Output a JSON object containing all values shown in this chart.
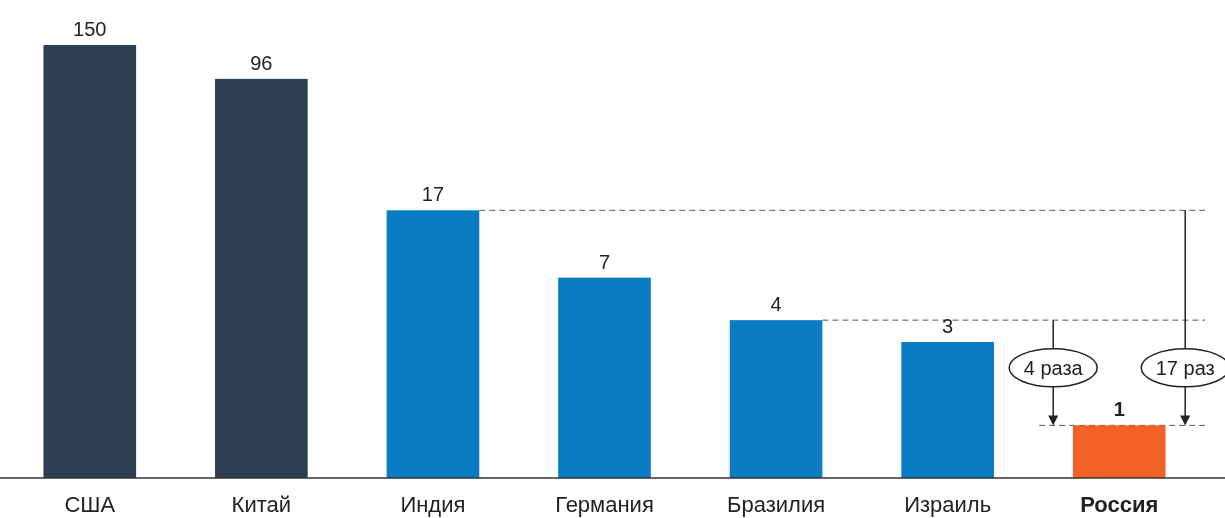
{
  "chart_data": {
    "type": "bar",
    "categories": [
      "США",
      "Китай",
      "Индия",
      "Германия",
      "Бразилия",
      "Израиль",
      "Россия"
    ],
    "values": [
      150,
      96,
      17,
      7,
      4,
      3,
      1
    ],
    "colors": [
      "#2c3e50",
      "#2c3e50",
      "#0a7cc4",
      "#0a7cc4",
      "#0a7cc4",
      "#0a7cc4",
      "#f26125"
    ],
    "data_labels": true,
    "log": true,
    "ylim": [
      0.5,
      150
    ],
    "tick_labels": "x",
    "ref_lines": [
      {
        "axis": "y",
        "value": 1,
        "color": "#555555",
        "line_style": "dashed"
      },
      {
        "axis": "y",
        "value": 4,
        "color": "#555555",
        "line_style": "dashed"
      },
      {
        "axis": "y",
        "value": 17,
        "color": "#555555",
        "line_style": "dashed"
      }
    ],
    "annotations": [
      "4 раза",
      "17 раз"
    ]
  }
}
